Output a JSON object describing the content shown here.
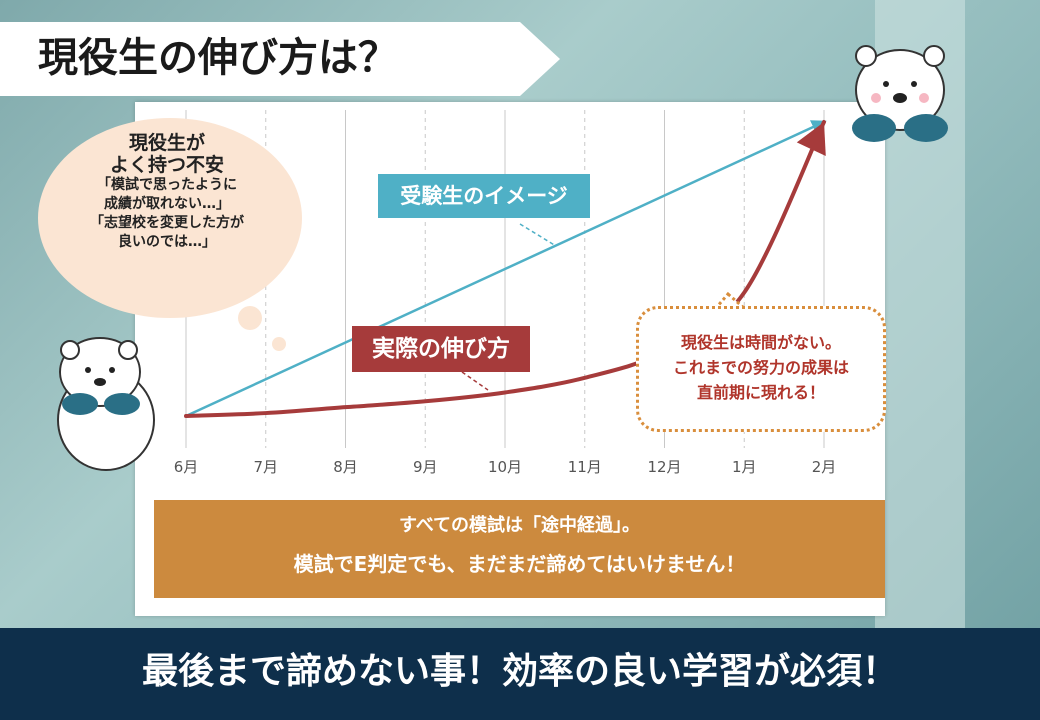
{
  "header": {
    "title": "現役生の伸び方は？"
  },
  "bubble": {
    "title_lines": [
      "現役生が",
      "よく持つ不安"
    ],
    "body_lines": [
      "「模試で思ったように",
      "成績が取れない…」",
      "「志望校を変更した方が",
      "良いのでは…」"
    ]
  },
  "chart_data": {
    "type": "line",
    "categories": [
      "6月",
      "7月",
      "8月",
      "9月",
      "10月",
      "11月",
      "12月",
      "1月",
      "2月"
    ],
    "series": [
      {
        "name": "受験生のイメージ",
        "color": "#4fb0c6",
        "values": [
          0,
          12.5,
          25,
          37.5,
          50,
          62.5,
          75,
          87.5,
          100
        ]
      },
      {
        "name": "実際の伸び方",
        "color": "#a63b3b",
        "values": [
          0,
          1,
          3,
          5,
          8,
          13,
          22,
          42,
          100
        ]
      }
    ],
    "ylim": [
      0,
      100
    ],
    "grid": true
  },
  "note": {
    "lines": [
      "現役生は時間がない。",
      "これまでの努力の成果は",
      "直前期に現れる！"
    ]
  },
  "message": {
    "line1": "すべての模試は「途中経過」。",
    "line2": "模試でE判定でも、まだまだ諦めてはいけません！"
  },
  "footer": {
    "text": "最後まで諦めない事！効率の良い学習が必須！"
  },
  "colors": {
    "accent_blue": "#4fb0c6",
    "accent_red": "#a63b3b",
    "orange": "#cc8a3e",
    "navy": "#0e2f4b"
  }
}
